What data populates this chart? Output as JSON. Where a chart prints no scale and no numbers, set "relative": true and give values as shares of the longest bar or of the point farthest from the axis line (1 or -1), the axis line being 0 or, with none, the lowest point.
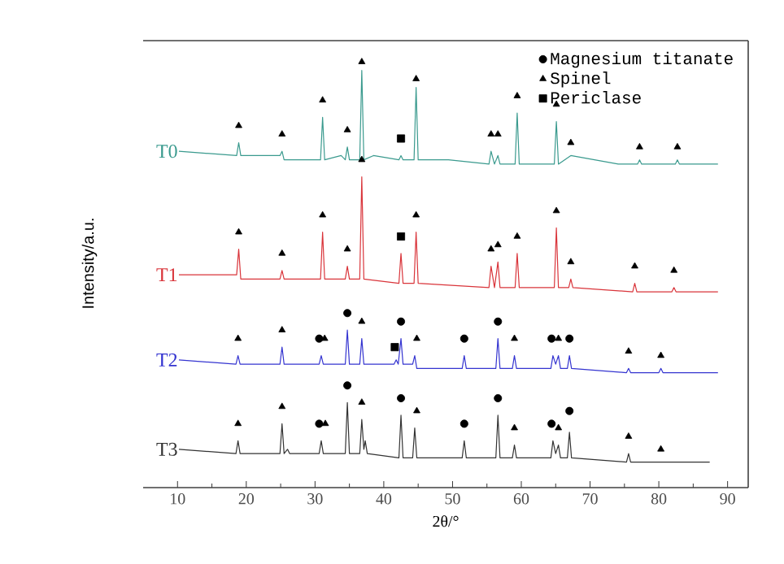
{
  "chart_data": {
    "type": "line",
    "relative": true,
    "xlabel": "2θ/°",
    "ylabel": "Intensity/a.u.",
    "xlim": [
      5,
      93
    ],
    "xticks": [
      10,
      20,
      30,
      40,
      50,
      60,
      70,
      80,
      90
    ],
    "legend": "top right",
    "series": [
      {
        "name": "T0",
        "color": "#3a9a8e",
        "x": [
          10.2,
          18.6,
          18.9,
          19.2,
          24.9,
          25.2,
          25.5,
          30.8,
          31.1,
          31.4,
          33.8,
          34.4,
          34.7,
          35.0,
          36.5,
          36.8,
          37.1,
          38.5,
          42.2,
          42.5,
          42.8,
          44.4,
          44.7,
          45.0,
          49.4,
          55.3,
          55.6,
          56.1,
          56.6,
          56.9,
          59.1,
          59.4,
          59.7,
          64.8,
          65.1,
          65.4,
          67.2,
          74.1,
          76.9,
          77.2,
          77.5,
          82.4,
          82.7,
          83.0,
          88.6
        ],
        "values": [
          0.79,
          0.78,
          0.81,
          0.78,
          0.78,
          0.79,
          0.77,
          0.77,
          0.87,
          0.77,
          0.78,
          0.77,
          0.8,
          0.77,
          0.77,
          0.98,
          0.77,
          0.78,
          0.77,
          0.78,
          0.77,
          0.77,
          0.94,
          0.77,
          0.77,
          0.76,
          0.79,
          0.76,
          0.78,
          0.76,
          0.76,
          0.88,
          0.76,
          0.76,
          0.86,
          0.76,
          0.78,
          0.76,
          0.76,
          0.77,
          0.76,
          0.76,
          0.77,
          0.76,
          0.76
        ]
      },
      {
        "name": "T1",
        "color": "#d9343a",
        "x": [
          10.2,
          18.6,
          18.9,
          19.2,
          24.9,
          25.2,
          25.5,
          30.8,
          31.1,
          31.4,
          34.4,
          34.7,
          35.0,
          36.5,
          36.8,
          37.1,
          42.2,
          42.5,
          42.8,
          44.4,
          44.7,
          45.0,
          55.3,
          55.6,
          56.1,
          56.6,
          56.9,
          59.1,
          59.4,
          59.7,
          64.8,
          65.1,
          65.4,
          66.9,
          67.2,
          67.5,
          76.2,
          76.5,
          76.8,
          81.9,
          82.2,
          82.5,
          88.6
        ],
        "values": [
          0.5,
          0.5,
          0.56,
          0.49,
          0.49,
          0.51,
          0.49,
          0.49,
          0.6,
          0.49,
          0.49,
          0.52,
          0.49,
          0.49,
          0.73,
          0.49,
          0.48,
          0.55,
          0.48,
          0.48,
          0.6,
          0.48,
          0.47,
          0.52,
          0.47,
          0.53,
          0.47,
          0.47,
          0.55,
          0.47,
          0.47,
          0.61,
          0.47,
          0.47,
          0.49,
          0.47,
          0.46,
          0.48,
          0.46,
          0.46,
          0.47,
          0.46,
          0.46
        ]
      },
      {
        "name": "T2",
        "color": "#3434d0",
        "x": [
          10.2,
          18.5,
          18.8,
          19.1,
          24.9,
          25.2,
          25.5,
          30.6,
          30.9,
          31.2,
          34.4,
          34.7,
          35.0,
          36.5,
          36.8,
          37.1,
          41.5,
          41.8,
          42.1,
          42.5,
          42.8,
          44.2,
          44.5,
          44.8,
          51.4,
          51.7,
          52.0,
          56.3,
          56.6,
          56.9,
          58.7,
          59.0,
          59.3,
          64.3,
          64.6,
          65.0,
          65.4,
          65.7,
          66.7,
          67.0,
          67.3,
          75.3,
          75.6,
          75.9,
          80.0,
          80.3,
          80.6,
          88.6
        ],
        "values": [
          0.3,
          0.29,
          0.31,
          0.29,
          0.29,
          0.33,
          0.29,
          0.29,
          0.31,
          0.29,
          0.29,
          0.37,
          0.29,
          0.29,
          0.35,
          0.29,
          0.29,
          0.3,
          0.29,
          0.35,
          0.29,
          0.29,
          0.31,
          0.28,
          0.28,
          0.31,
          0.28,
          0.28,
          0.35,
          0.28,
          0.28,
          0.31,
          0.28,
          0.28,
          0.31,
          0.29,
          0.31,
          0.28,
          0.28,
          0.31,
          0.28,
          0.27,
          0.28,
          0.27,
          0.27,
          0.28,
          0.27,
          0.27
        ]
      },
      {
        "name": "T3",
        "color": "#333333",
        "x": [
          10.2,
          18.5,
          18.8,
          19.1,
          24.9,
          25.2,
          25.5,
          26.0,
          26.3,
          30.6,
          30.9,
          31.2,
          34.4,
          34.7,
          35.0,
          36.5,
          36.8,
          37.1,
          37.3,
          37.6,
          42.2,
          42.5,
          42.8,
          44.2,
          44.5,
          44.8,
          51.4,
          51.7,
          52.0,
          56.3,
          56.6,
          56.9,
          58.7,
          59.0,
          59.3,
          64.3,
          64.6,
          65.0,
          65.4,
          65.7,
          66.7,
          67.0,
          67.3,
          75.3,
          75.6,
          75.9,
          87.4
        ],
        "values": [
          0.09,
          0.08,
          0.11,
          0.08,
          0.08,
          0.15,
          0.08,
          0.09,
          0.08,
          0.08,
          0.11,
          0.08,
          0.08,
          0.2,
          0.08,
          0.08,
          0.16,
          0.09,
          0.11,
          0.08,
          0.07,
          0.17,
          0.07,
          0.07,
          0.14,
          0.07,
          0.07,
          0.11,
          0.07,
          0.07,
          0.17,
          0.07,
          0.07,
          0.1,
          0.07,
          0.07,
          0.11,
          0.08,
          0.1,
          0.07,
          0.07,
          0.13,
          0.07,
          0.06,
          0.08,
          0.06,
          0.06
        ]
      },
      {
        "name": "Magnesium titanate",
        "type": "scatter",
        "marker": "circle",
        "color": "#000000",
        "x": [
          30.6,
          34.7,
          42.5,
          51.7,
          56.6,
          64.4,
          67.0,
          30.6,
          34.7,
          42.5,
          51.7,
          56.6,
          64.4,
          67.0
        ],
        "values": [
          0.35,
          0.41,
          0.39,
          0.35,
          0.39,
          0.35,
          0.35,
          0.15,
          0.24,
          0.21,
          0.15,
          0.21,
          0.15,
          0.18
        ]
      },
      {
        "name": "Spinel",
        "type": "scatter",
        "marker": "triangle",
        "color": "#000000",
        "x": [
          18.9,
          25.2,
          31.1,
          34.7,
          36.8,
          44.7,
          55.6,
          56.6,
          59.4,
          65.1,
          67.2,
          77.2,
          82.7,
          18.9,
          25.2,
          31.1,
          34.7,
          36.8,
          44.7,
          55.6,
          56.6,
          59.4,
          65.1,
          67.2,
          76.5,
          82.2,
          18.8,
          25.2,
          31.4,
          36.8,
          44.8,
          59.0,
          65.4,
          75.6,
          80.3,
          18.8,
          25.2,
          31.5,
          36.8,
          44.8,
          59.0,
          65.4,
          75.6,
          80.3
        ],
        "values": [
          0.85,
          0.83,
          0.91,
          0.84,
          1.0,
          0.96,
          0.83,
          0.83,
          0.92,
          0.9,
          0.81,
          0.8,
          0.8,
          0.6,
          0.55,
          0.64,
          0.56,
          0.77,
          0.64,
          0.56,
          0.57,
          0.59,
          0.65,
          0.53,
          0.52,
          0.51,
          0.35,
          0.37,
          0.35,
          0.39,
          0.35,
          0.35,
          0.35,
          0.32,
          0.31,
          0.15,
          0.19,
          0.15,
          0.2,
          0.18,
          0.14,
          0.14,
          0.12,
          0.09
        ]
      },
      {
        "name": "Periclase",
        "type": "scatter",
        "marker": "square",
        "color": "#000000",
        "x": [
          42.5,
          42.5,
          41.6
        ],
        "values": [
          0.82,
          0.59,
          0.33
        ]
      }
    ]
  }
}
